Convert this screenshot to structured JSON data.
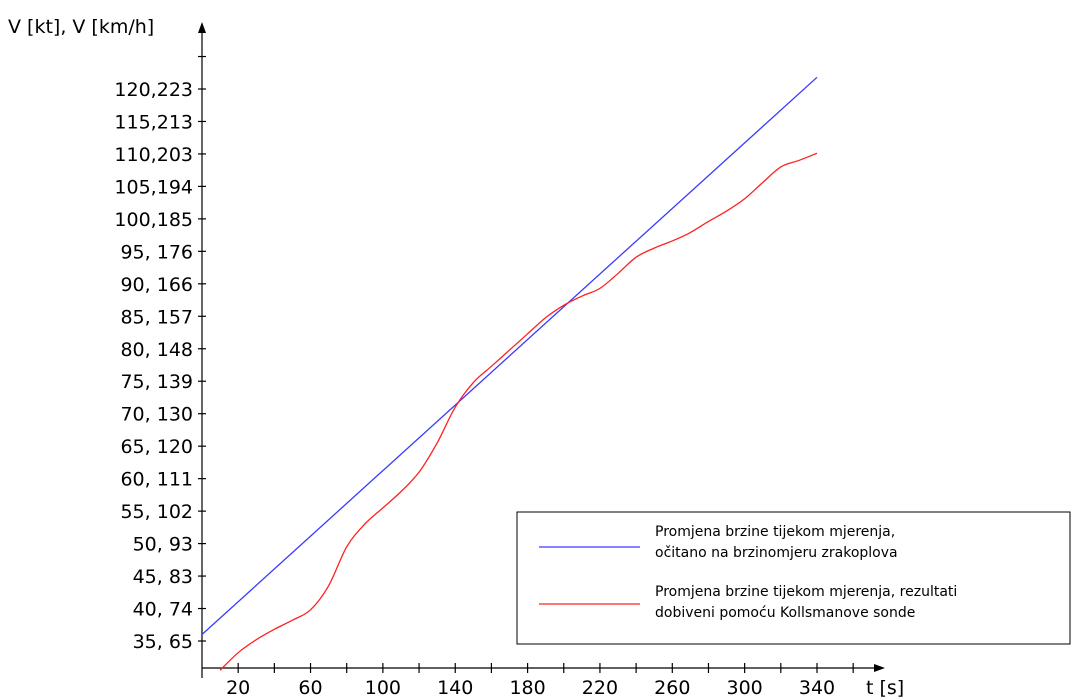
{
  "chart_data": {
    "type": "line",
    "title": "",
    "ylabel": "V [kt], V [km/h]",
    "xlabel": "t [s]",
    "xlim": [
      0,
      370
    ],
    "ylim": [
      30,
      125
    ],
    "x_ticks": [
      20,
      40,
      60,
      80,
      100,
      120,
      140,
      160,
      180,
      200,
      220,
      240,
      260,
      280,
      300,
      320,
      340,
      360
    ],
    "x_tick_labels": [
      {
        "value": 20,
        "label": "20"
      },
      {
        "value": 60,
        "label": "60"
      },
      {
        "value": 100,
        "label": "100"
      },
      {
        "value": 140,
        "label": "140"
      },
      {
        "value": 180,
        "label": "180"
      },
      {
        "value": 220,
        "label": "220"
      },
      {
        "value": 260,
        "label": "260"
      },
      {
        "value": 300,
        "label": "300"
      },
      {
        "value": 340,
        "label": "340"
      }
    ],
    "y_ticks": [
      {
        "value": 35,
        "label": "35, 65"
      },
      {
        "value": 40,
        "label": "40, 74"
      },
      {
        "value": 45,
        "label": "45, 83"
      },
      {
        "value": 50,
        "label": "50, 93"
      },
      {
        "value": 55,
        "label": "55, 102"
      },
      {
        "value": 60,
        "label": "60, 111"
      },
      {
        "value": 65,
        "label": "65, 120"
      },
      {
        "value": 70,
        "label": "70, 130"
      },
      {
        "value": 75,
        "label": "75, 139"
      },
      {
        "value": 80,
        "label": "80, 148"
      },
      {
        "value": 85,
        "label": "85, 157"
      },
      {
        "value": 90,
        "label": "90, 166"
      },
      {
        "value": 95,
        "label": "95, 176"
      },
      {
        "value": 100,
        "label": "100,185"
      },
      {
        "value": 105,
        "label": "105,194"
      },
      {
        "value": 110,
        "label": "110,203"
      },
      {
        "value": 115,
        "label": "115,213"
      },
      {
        "value": 120,
        "label": "120,223"
      }
    ],
    "grid": false,
    "legend": "bottom-right",
    "series": [
      {
        "name": "Promjena brzine tijekom mjerenja, očitano na brzinomjeru zrakoplova",
        "legend_lines": [
          "Promjena brzine tijekom mjerenja,",
          "očitano na brzinomjeru zrakoplova"
        ],
        "color": "#3a3aff",
        "x": [
          0,
          340
        ],
        "y": [
          36.0,
          121.8
        ]
      },
      {
        "name": "Promjena brzine tijekom mjerenja, rezultati dobiveni pomoću Kollsmanove sonde",
        "legend_lines": [
          "Promjena brzine tijekom mjerenja, rezultati",
          "dobiveni pomoću Kollsmanove sonde"
        ],
        "color": "#ff2020",
        "x": [
          10,
          20,
          30,
          40,
          50,
          60,
          70,
          80,
          90,
          100,
          110,
          120,
          130,
          140,
          150,
          160,
          170,
          180,
          190,
          200,
          210,
          220,
          230,
          240,
          250,
          260,
          270,
          280,
          290,
          300,
          310,
          320,
          330,
          340
        ],
        "y": [
          30.5,
          33.2,
          35.2,
          36.8,
          38.2,
          39.8,
          43.5,
          49.5,
          53.0,
          55.5,
          58.0,
          61.0,
          65.5,
          71.0,
          74.8,
          77.3,
          79.8,
          82.3,
          84.8,
          86.7,
          88.1,
          89.3,
          91.6,
          94.1,
          95.5,
          96.6,
          97.9,
          99.6,
          101.2,
          103.1,
          105.6,
          108.0,
          109.0,
          110.1
        ]
      }
    ]
  }
}
